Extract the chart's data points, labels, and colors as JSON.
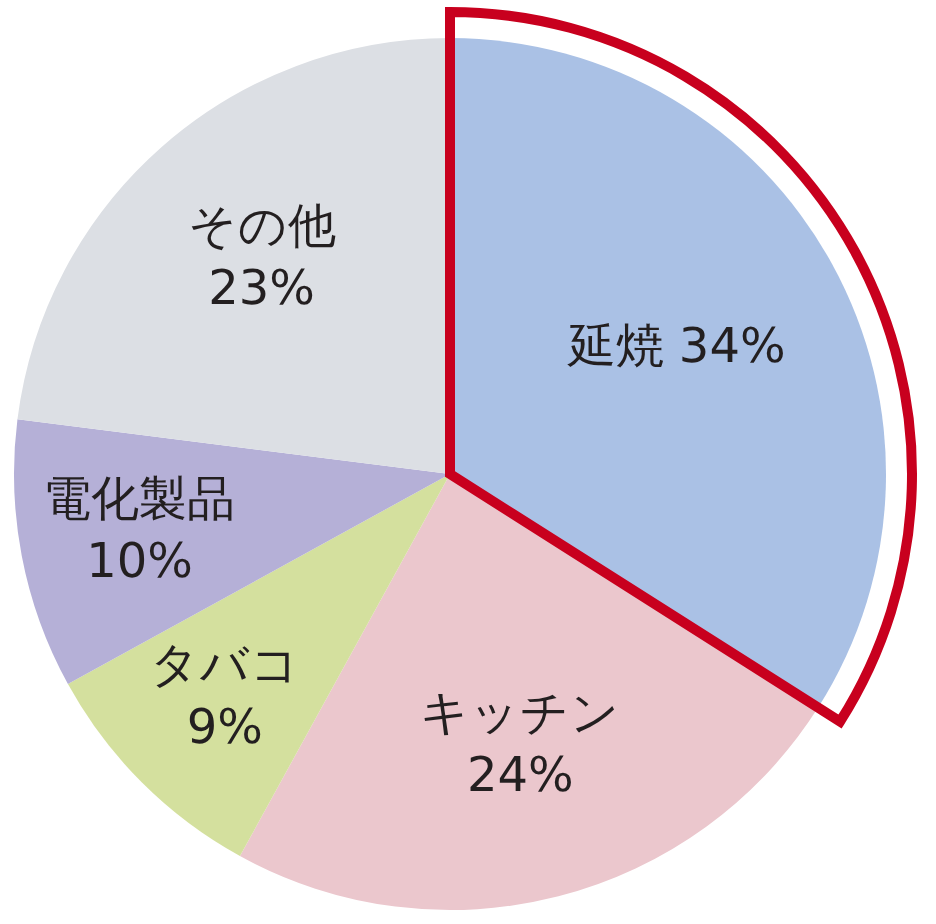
{
  "chart_data": {
    "type": "pie",
    "categories": [
      "延焼",
      "キッチン",
      "タバコ",
      "電化製品",
      "その他"
    ],
    "values": [
      34,
      24,
      9,
      10,
      23
    ],
    "value_labels": [
      "34%",
      "24%",
      "9%",
      "10%",
      "23%"
    ],
    "colors": [
      "#aac1e5",
      "#ebc7cd",
      "#d4e09e",
      "#b5b0d7",
      "#dcdfe4"
    ]
  }
}
